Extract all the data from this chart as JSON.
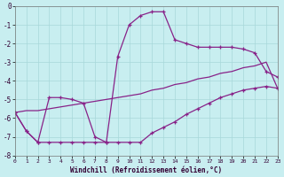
{
  "xlabel": "Windchill (Refroidissement éolien,°C)",
  "bg_color": "#c8eef0",
  "grid_color": "#a8d8da",
  "line_color": "#882288",
  "xlim": [
    0,
    23
  ],
  "ylim": [
    -8,
    0
  ],
  "xticks": [
    0,
    1,
    2,
    3,
    4,
    5,
    6,
    7,
    8,
    9,
    10,
    11,
    12,
    13,
    14,
    15,
    16,
    17,
    18,
    19,
    20,
    21,
    22,
    23
  ],
  "yticks": [
    0,
    -1,
    -2,
    -3,
    -4,
    -5,
    -6,
    -7,
    -8
  ],
  "line1_x": [
    0,
    1,
    2,
    3,
    4,
    5,
    6,
    7,
    8,
    9,
    10,
    11,
    12,
    13,
    14,
    15,
    16,
    17,
    18,
    19,
    20,
    21,
    22,
    23
  ],
  "line1_y": [
    -5.7,
    -6.7,
    -7.3,
    -4.9,
    -4.9,
    -5.0,
    -5.2,
    -7.0,
    -7.3,
    -2.7,
    -1.0,
    -0.5,
    -0.3,
    -0.3,
    -1.8,
    -2.0,
    -2.2,
    -2.2,
    -2.2,
    -2.2,
    -2.3,
    -2.5,
    -3.5,
    -3.8
  ],
  "line2_x": [
    0,
    1,
    2,
    3,
    4,
    5,
    6,
    7,
    8,
    9,
    10,
    11,
    12,
    13,
    14,
    15,
    16,
    17,
    18,
    19,
    20,
    21,
    22,
    23
  ],
  "line2_y": [
    -5.7,
    -6.7,
    -7.3,
    -7.3,
    -7.3,
    -7.3,
    -7.3,
    -7.3,
    -7.3,
    -7.3,
    -7.3,
    -7.3,
    -6.8,
    -6.5,
    -6.2,
    -5.8,
    -5.5,
    -5.2,
    -4.9,
    -4.7,
    -4.5,
    -4.4,
    -4.3,
    -4.4
  ],
  "line3_x": [
    0,
    1,
    2,
    3,
    4,
    5,
    6,
    7,
    8,
    9,
    10,
    11,
    12,
    13,
    14,
    15,
    16,
    17,
    18,
    19,
    20,
    21,
    22,
    23
  ],
  "line3_y": [
    -5.7,
    -5.6,
    -5.6,
    -5.5,
    -5.4,
    -5.3,
    -5.2,
    -5.1,
    -5.0,
    -4.9,
    -4.8,
    -4.7,
    -4.5,
    -4.4,
    -4.2,
    -4.1,
    -3.9,
    -3.8,
    -3.6,
    -3.5,
    -3.3,
    -3.2,
    -3.0,
    -4.4
  ]
}
